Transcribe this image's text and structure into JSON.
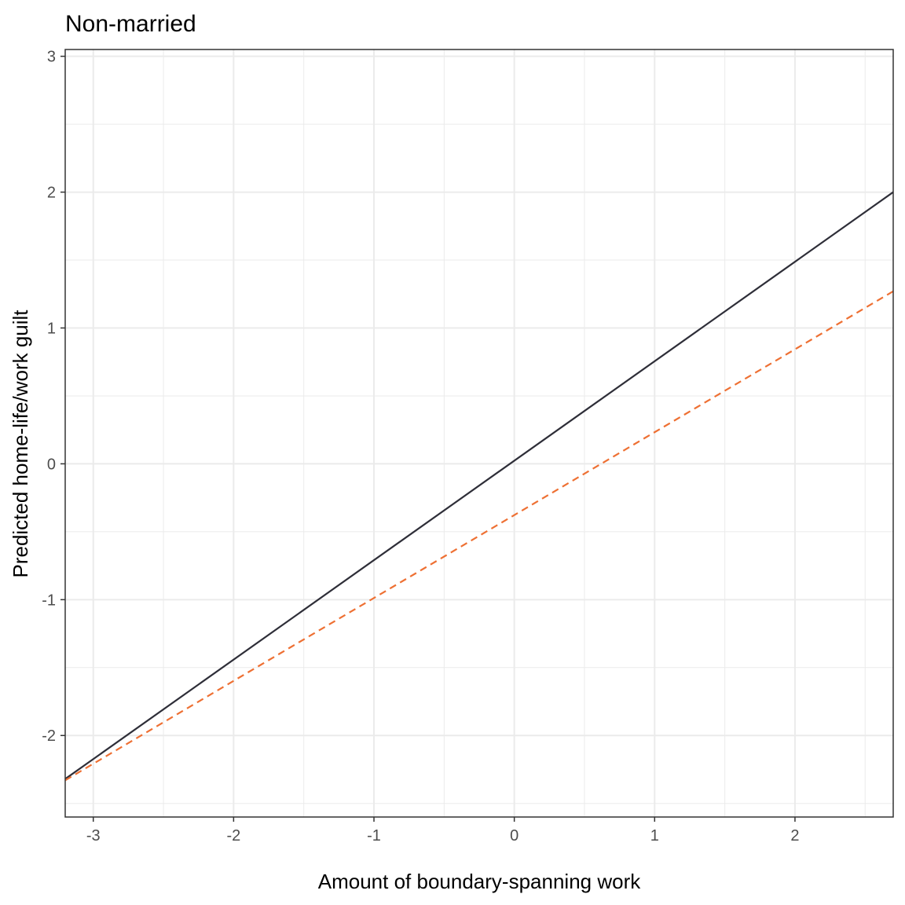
{
  "chart_data": {
    "type": "line",
    "title": "Non-married",
    "xlabel": "Amount of boundary-spanning work",
    "ylabel": "Predicted home-life/work guilt",
    "xlim": [
      -3.2,
      2.7
    ],
    "ylim": [
      -2.6,
      3.05
    ],
    "x_ticks": [
      "-3",
      "-2",
      "-1",
      "0",
      "1",
      "2"
    ],
    "y_ticks": [
      "-2",
      "-1",
      "0",
      "1",
      "2",
      "3"
    ],
    "x_tick_values": [
      -3,
      -2,
      -1,
      0,
      1,
      2
    ],
    "y_tick_values": [
      -2,
      -1,
      0,
      1,
      2,
      3
    ],
    "x_minor": [
      -2.5,
      -1.5,
      -0.5,
      0.5,
      1.5,
      2.5
    ],
    "y_minor": [
      -2.5,
      -1.5,
      -0.5,
      0.5,
      1.5,
      2.5
    ],
    "grid": true,
    "legend": "none",
    "series": [
      {
        "x": [
          -3.2,
          2.7
        ],
        "y": [
          -2.32,
          2.0
        ],
        "color": "#2e2e38",
        "dash": "solid"
      },
      {
        "x": [
          -3.2,
          2.7
        ],
        "y": [
          -2.33,
          1.27
        ],
        "color": "#ee7033",
        "dash": "dashed"
      }
    ],
    "colors": {
      "panel_border": "#333333",
      "grid": "#ebebeb",
      "tick": "#333333"
    }
  }
}
